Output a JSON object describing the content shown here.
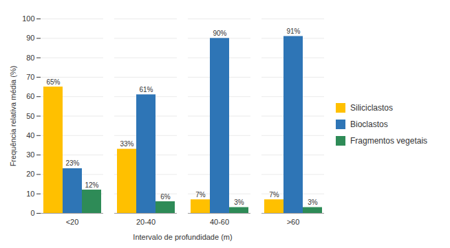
{
  "chart_data": {
    "type": "bar",
    "categories": [
      "<20",
      "20-40",
      "40-60",
      ">60"
    ],
    "series": [
      {
        "name": "Siliciclastos",
        "color": "#FFC000",
        "values": [
          65,
          33,
          7,
          7
        ],
        "value_labels": [
          "65%",
          "33%",
          "7%",
          "7%"
        ]
      },
      {
        "name": "Bioclastos",
        "color": "#2E75B6",
        "values": [
          23,
          61,
          90,
          91
        ],
        "value_labels": [
          "23%",
          "61%",
          "90%",
          "91%"
        ]
      },
      {
        "name": "Fragmentos vegetais",
        "color": "#2E8B57",
        "values": [
          12,
          6,
          3,
          3
        ],
        "value_labels": [
          "12%",
          "6%",
          "3%",
          "3%"
        ]
      }
    ],
    "xlabel": "Intervalo de profundidade (m)",
    "ylabel": "Frequência relativa média (%)",
    "ylim": [
      0,
      100
    ],
    "yticks": [
      0,
      10,
      20,
      30,
      40,
      50,
      60,
      70,
      80,
      90,
      100
    ],
    "grid": true,
    "data_labels": true,
    "legend": "right"
  }
}
